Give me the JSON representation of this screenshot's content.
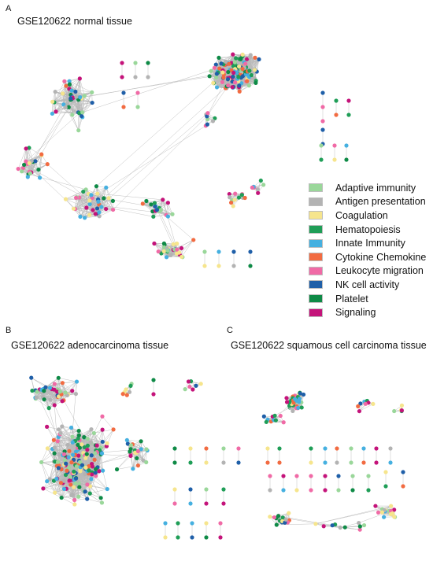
{
  "panels": [
    {
      "letter": "A",
      "title": "GSE120622 normal tissue"
    },
    {
      "letter": "B",
      "title": "GSE120622 adenocarcinoma tissue"
    },
    {
      "letter": "C",
      "title": "GSE120622 squamous cell carcinoma tissue"
    }
  ],
  "legend": [
    {
      "label": "Adaptive immunity",
      "color": "#9ad79a"
    },
    {
      "label": "Antigen presentation",
      "color": "#b3b3b3"
    },
    {
      "label": "Coagulation",
      "color": "#f6e58d"
    },
    {
      "label": "Hematopoiesis",
      "color": "#1f9e57"
    },
    {
      "label": "Innate Immunity",
      "color": "#45b0e0"
    },
    {
      "label": "Cytokine Chemokine",
      "color": "#f26b41"
    },
    {
      "label": "Leukocyte migration",
      "color": "#f06aa6"
    },
    {
      "label": "NK cell activity",
      "color": "#1f5fa8"
    },
    {
      "label": "Platelet",
      "color": "#0e8a46"
    },
    {
      "label": "Signaling",
      "color": "#c4137a"
    }
  ]
}
